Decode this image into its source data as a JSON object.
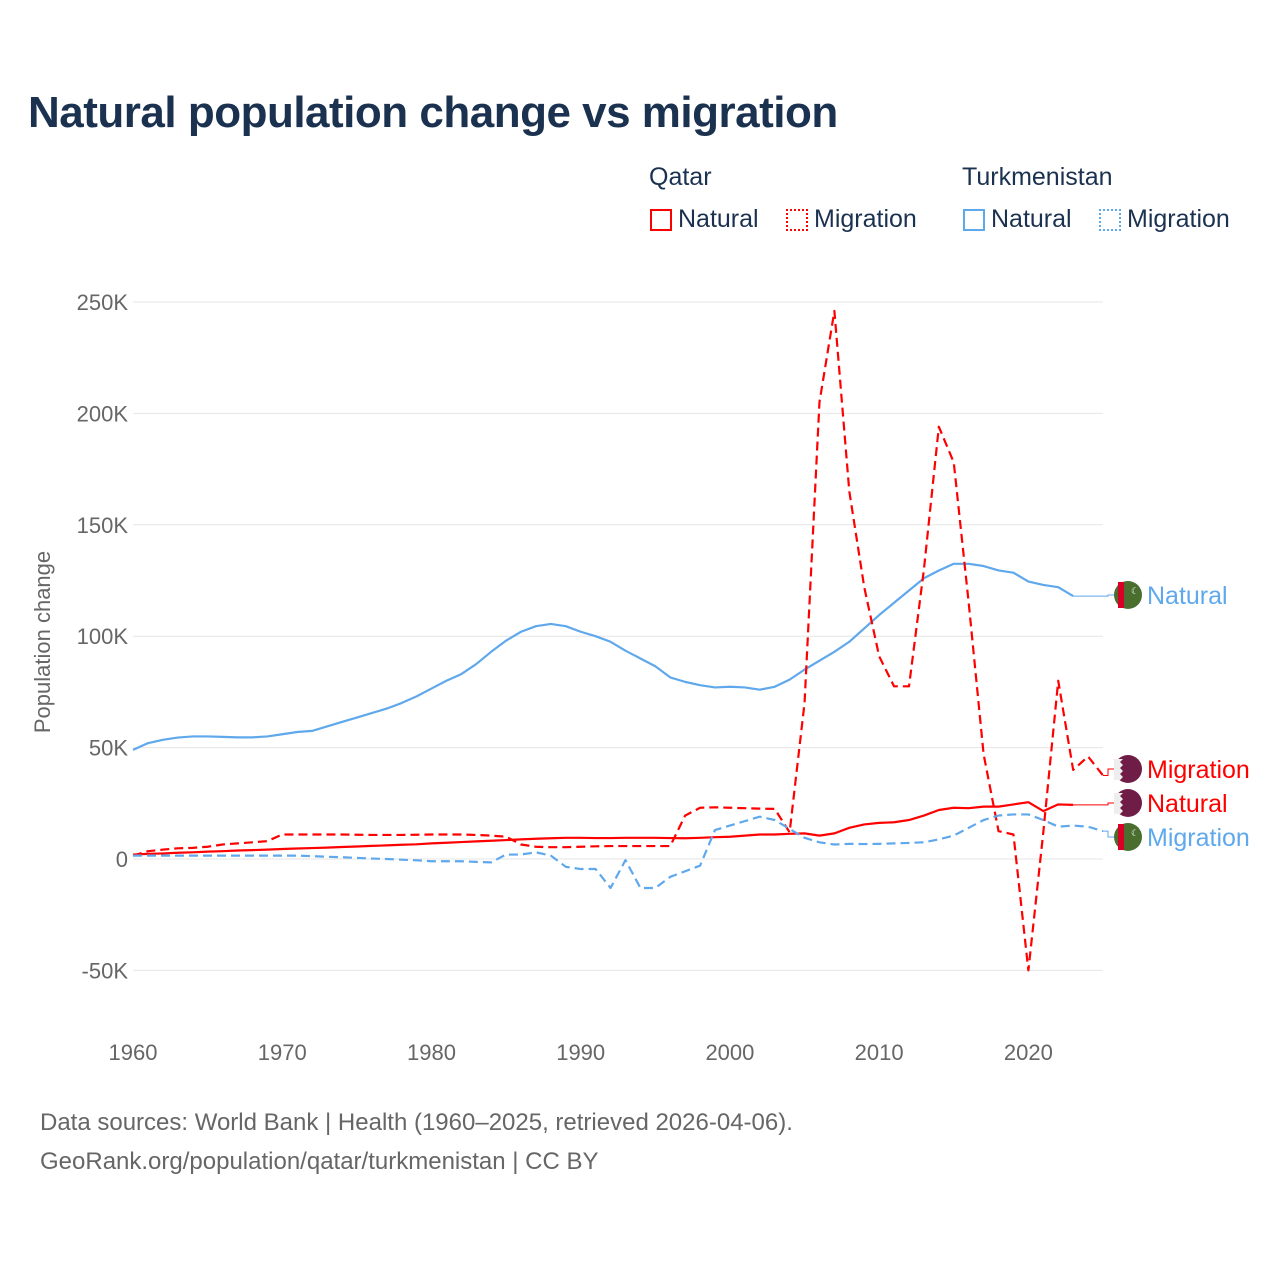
{
  "title": "Natural population change vs migration",
  "legend": {
    "groups": [
      {
        "name": "Qatar",
        "color": "#ff0000",
        "items": [
          "Natural",
          "Migration"
        ]
      },
      {
        "name": "Turkmenistan",
        "color": "#5fa8ec",
        "items": [
          "Natural",
          "Migration"
        ]
      }
    ]
  },
  "footer": {
    "line1": "Data sources: World Bank | Health (1960–2025, retrieved 2026-04-06).",
    "line2": "GeoRank.org/population/qatar/turkmenistan | CC BY"
  },
  "chart_data": {
    "type": "line",
    "title": "Natural population change vs migration",
    "xlabel": "",
    "ylabel": "Population change",
    "xlim": [
      1960,
      2025
    ],
    "ylim": [
      -75000,
      260000
    ],
    "x_ticks": [
      1960,
      1970,
      1980,
      1990,
      2000,
      2010,
      2020
    ],
    "x_tick_labels": [
      "1960",
      "1970",
      "1980",
      "1990",
      "2000",
      "2010",
      "2020"
    ],
    "y_ticks": [
      -50000,
      0,
      50000,
      100000,
      150000,
      200000,
      250000
    ],
    "y_tick_labels": [
      "-50K",
      "0",
      "50K",
      "100K",
      "150K",
      "200K",
      "250K"
    ],
    "grid": true,
    "legend_position": "top-right",
    "series": [
      {
        "name": "Turkmenistan Natural",
        "end_label": "Natural",
        "flag": "turkmenistan-flag",
        "color": "#5fa8ec",
        "dash": false,
        "start": 1960,
        "values": [
          49,
          52,
          53.5,
          54.5,
          55,
          55,
          54.8,
          54.6,
          54.6,
          55,
          56,
          57,
          57.5,
          59.5,
          61.5,
          63.5,
          65.5,
          67.5,
          70,
          73,
          76.5,
          80,
          83,
          87.5,
          93,
          98,
          102,
          104.5,
          105.5,
          104.5,
          102,
          100,
          97.5,
          93.5,
          90,
          86.5,
          81.5,
          79.5,
          78,
          77,
          77.3,
          77,
          76,
          77.3,
          80.5,
          85,
          89,
          93,
          97.5,
          103.5,
          109.5,
          115,
          120.5,
          126,
          129.5,
          132.5,
          132.5,
          131.5,
          129.5,
          128.5,
          124.5,
          123,
          122,
          118
        ]
      },
      {
        "name": "Qatar Migration",
        "end_label": "Migration",
        "flag": "qatar-flag",
        "color": "#ff0000",
        "dash": true,
        "start": 1960,
        "values": [
          1.5,
          3.5,
          4.2,
          4.8,
          5,
          5.5,
          6.5,
          7,
          7.5,
          8,
          11,
          11,
          11,
          11,
          11,
          10.9,
          10.8,
          10.8,
          10.8,
          10.9,
          11,
          11,
          11,
          10.8,
          10.5,
          10,
          6.5,
          5.5,
          5.3,
          5.3,
          5.5,
          5.7,
          5.8,
          5.8,
          5.8,
          5.8,
          5.8,
          19.5,
          23,
          23.2,
          23,
          22.8,
          22.6,
          22.5,
          12,
          70,
          205,
          246,
          165,
          122,
          91,
          77.5,
          77.5,
          130,
          194,
          178,
          115,
          47,
          12.5,
          11,
          -50,
          12,
          80,
          40,
          46,
          37.5
        ]
      },
      {
        "name": "Qatar Natural",
        "end_label": "Natural",
        "flag": "qatar-flag",
        "color": "#ff0000",
        "dash": false,
        "start": 1960,
        "values": [
          2,
          2.3,
          2.5,
          2.8,
          3,
          3.3,
          3.5,
          3.8,
          4,
          4.2,
          4.5,
          4.7,
          4.9,
          5.1,
          5.4,
          5.6,
          5.9,
          6.1,
          6.4,
          6.6,
          7,
          7.3,
          7.6,
          7.9,
          8.2,
          8.5,
          8.8,
          9.1,
          9.3,
          9.5,
          9.5,
          9.4,
          9.4,
          9.5,
          9.5,
          9.5,
          9.4,
          9.3,
          9.5,
          9.8,
          10,
          10.5,
          11,
          11,
          11.3,
          11.5,
          10.5,
          11.5,
          14,
          15.5,
          16.2,
          16.5,
          17.5,
          19.5,
          22,
          23,
          22.8,
          23.5,
          23.5,
          24.5,
          25.5,
          21.5,
          24.5,
          24.3
        ]
      },
      {
        "name": "Turkmenistan Migration",
        "end_label": "Migration",
        "flag": "turkmenistan-flag",
        "color": "#5fa8ec",
        "dash": true,
        "start": 1960,
        "values": [
          1.5,
          1.5,
          1.5,
          1.5,
          1.5,
          1.5,
          1.5,
          1.5,
          1.5,
          1.5,
          1.5,
          1.5,
          1.3,
          1,
          0.8,
          0.5,
          0.2,
          0,
          -0.3,
          -0.6,
          -1,
          -1,
          -1,
          -1.3,
          -1.5,
          2,
          2,
          3,
          1.5,
          -3.5,
          -4.5,
          -4.5,
          -13,
          -0.5,
          -13,
          -13,
          -8,
          -5.5,
          -3,
          13,
          15,
          17,
          19,
          17.5,
          13.5,
          9.5,
          7.5,
          6.5,
          6.8,
          6.7,
          6.8,
          7,
          7.2,
          7.5,
          8.8,
          10.5,
          14,
          17.5,
          19.5,
          20,
          20,
          17.5,
          14.5,
          15,
          14.5,
          12.5
        ]
      }
    ]
  }
}
